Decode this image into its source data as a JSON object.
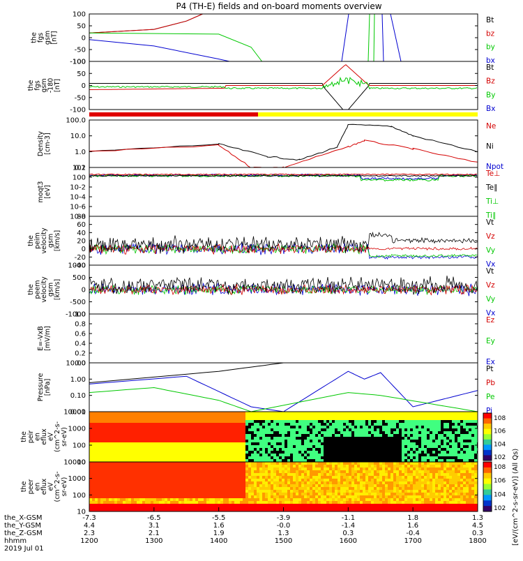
{
  "title": "P4 (TH-E) fields and on-board moments overview",
  "time_axis": {
    "rows": [
      {
        "label": "the_X-GSM",
        "values": [
          "-7.3",
          "-6.5",
          "-5.5",
          "-3.9",
          "-1.1",
          "1.8",
          "1.3"
        ]
      },
      {
        "label": "the_Y-GSM",
        "values": [
          "4.4",
          "3.1",
          "1.6",
          "-0.0",
          "-1.4",
          "1.6",
          "4.5"
        ]
      },
      {
        "label": "the_Z-GSM",
        "values": [
          "2.3",
          "2.1",
          "1.9",
          "1.3",
          "0.3",
          "-0.4",
          "0.3"
        ]
      },
      {
        "label": "hhmm",
        "values": [
          "1200",
          "1300",
          "1400",
          "1500",
          "1600",
          "1700",
          "1800"
        ]
      }
    ],
    "date": "2019 Jul 01"
  },
  "colors": {
    "black": "#000000",
    "red": "#d40000",
    "green": "#00c800",
    "blue": "#0000d0",
    "yellow": "#ffff00"
  },
  "panels": [
    {
      "id": "fgs",
      "ylabel": "the\nfgs\ngsm\n[nT]",
      "ticks": [
        "100",
        "50",
        "0",
        "-50",
        "-100"
      ],
      "legend": [
        {
          "t": "Bt",
          "c": "black"
        },
        {
          "t": "bz",
          "c": "red"
        },
        {
          "t": "by",
          "c": "green"
        },
        {
          "t": "bx",
          "c": "blue"
        }
      ]
    },
    {
      "id": "fgs2",
      "ylabel": "the\nfgs\ngsm\n-180\n[nT]",
      "ticks": [
        "100",
        "50",
        "0",
        "-50",
        "-100"
      ],
      "legend": [
        {
          "t": "Bt",
          "c": "black"
        },
        {
          "t": "Bz",
          "c": "red"
        },
        {
          "t": "By",
          "c": "green"
        },
        {
          "t": "Bx",
          "c": "blue"
        }
      ]
    },
    {
      "id": "density",
      "ylabel": "Density\n[cm-3]",
      "ticks": [
        "100.0",
        "10.0",
        "1.0",
        "0.1"
      ],
      "legend": [
        {
          "t": "Ne",
          "c": "red"
        },
        {
          "t": "Ni",
          "c": "black"
        },
        {
          "t": "Npot",
          "c": "blue"
        }
      ]
    },
    {
      "id": "temp",
      "ylabel": "moqt3\n[eV]",
      "ticks": [
        "10^2",
        "10^0",
        "10^-2",
        "10^-4",
        "10^-6",
        "10^-8"
      ],
      "legend": [
        {
          "t": "Te⊥",
          "c": "red"
        },
        {
          "t": "Te∥",
          "c": "black"
        },
        {
          "t": "Ti⊥",
          "c": "green"
        },
        {
          "t": "Ti∥",
          "c": "green"
        }
      ]
    },
    {
      "id": "veli",
      "ylabel": "the\npeim\nvelocity\ngsm\n[km/s]",
      "ticks": [
        "80",
        "60",
        "40",
        "20",
        "0",
        "-20",
        "-40"
      ],
      "legend": [
        {
          "t": "Vt",
          "c": "black"
        },
        {
          "t": "Vz",
          "c": "red"
        },
        {
          "t": "Vy",
          "c": "green"
        },
        {
          "t": "Vx",
          "c": "blue"
        }
      ]
    },
    {
      "id": "vele",
      "ylabel": "the\npeem\nvelocity\ngsm\n[km/s]",
      "ticks": [
        "1000",
        "500",
        "0",
        "-500",
        "-1000"
      ],
      "legend": [
        {
          "t": "Vt",
          "c": "black"
        },
        {
          "t": "Vz",
          "c": "red"
        },
        {
          "t": "Vy",
          "c": "green"
        },
        {
          "t": "Vx",
          "c": "blue"
        }
      ]
    },
    {
      "id": "efield",
      "ylabel": "E=-VxB\n[mV/m]",
      "ticks": [
        "1.0",
        "0.8",
        "0.6",
        "0.4",
        "0.2",
        "0.0"
      ],
      "legend": [
        {
          "t": "Ez",
          "c": "red"
        },
        {
          "t": "Ey",
          "c": "green"
        },
        {
          "t": "Ex",
          "c": "blue"
        }
      ]
    },
    {
      "id": "pressure",
      "ylabel": "Pressure\n[nPa]",
      "ticks": [
        "10.00",
        "1.00",
        "0.10",
        "0.01"
      ],
      "legend": [
        {
          "t": "Pt",
          "c": "black"
        },
        {
          "t": "Pb",
          "c": "red"
        },
        {
          "t": "Pe",
          "c": "green"
        },
        {
          "t": "Pi",
          "c": "blue"
        }
      ]
    },
    {
      "id": "peir",
      "ylabel": "the\npeir\nen\neflux\neV\n(cm^2-s-\nsr-eV)",
      "ticks": [
        "10000",
        "1000",
        "100",
        "10"
      ],
      "legend": []
    },
    {
      "id": "peer",
      "ylabel": "the\npeer\nen\neflux\neV\n(cm^2-s-\nsr-eV)",
      "ticks": [
        "10000",
        "1000",
        "100",
        "10"
      ],
      "legend": []
    }
  ],
  "colorbar": {
    "label": "[eV/(cm^2-s-sr-eV)] (All Qs)",
    "ticks_top": [
      "10^8",
      "10^6",
      "10^4",
      "10^2"
    ],
    "ticks_bottom": [
      "10^8",
      "10^6",
      "10^4",
      "10^2"
    ]
  },
  "chart_data": {
    "type": "line",
    "title": "P4 (TH-E) fields and on-board moments overview",
    "x_label": "hhmm",
    "x_ticks": [
      "1200",
      "1300",
      "1400",
      "1500",
      "1600",
      "1700",
      "1800"
    ],
    "series": [
      {
        "name": "Bt",
        "panel": "fgs",
        "x": [
          "1200",
          "1300",
          "1330",
          "1345"
        ],
        "y": [
          20,
          35,
          70,
          100
        ]
      },
      {
        "name": "bz",
        "panel": "fgs",
        "x": [
          "1200",
          "1300",
          "1330",
          "1345"
        ],
        "y": [
          20,
          35,
          70,
          100
        ]
      },
      {
        "name": "by",
        "panel": "fgs",
        "x": [
          "1200",
          "1400",
          "1430",
          "1440"
        ],
        "y": [
          20,
          15,
          -40,
          -100
        ]
      },
      {
        "name": "bx",
        "panel": "fgs",
        "x": [
          "1200",
          "1300",
          "1400",
          "1410"
        ],
        "y": [
          -8,
          -35,
          -90,
          -100
        ]
      },
      {
        "name": "Ni",
        "panel": "density",
        "x": [
          "1200",
          "1400",
          "1445",
          "1515",
          "1550",
          "1600",
          "1640",
          "1700",
          "1800"
        ],
        "y": [
          1.0,
          3.0,
          0.5,
          0.3,
          2.0,
          50,
          40,
          10,
          1.0
        ]
      },
      {
        "name": "Ne",
        "panel": "density",
        "x": [
          "1200",
          "1400",
          "1430",
          "1500",
          "1600",
          "1615",
          "1700",
          "1800"
        ],
        "y": [
          1.0,
          2.5,
          0.1,
          0.1,
          2.0,
          5.0,
          1.5,
          0.2
        ]
      },
      {
        "name": "Pt",
        "panel": "pressure",
        "x": [
          "1200",
          "1400",
          "1500"
        ],
        "y": [
          0.6,
          3.0,
          10
        ]
      },
      {
        "name": "Pi",
        "panel": "pressure",
        "x": [
          "1200",
          "1330",
          "1430",
          "1500",
          "1600",
          "1615",
          "1630",
          "1700",
          "1800"
        ],
        "y": [
          0.5,
          1.5,
          0.02,
          0.01,
          3.0,
          1.0,
          2.5,
          0.02,
          0.2
        ]
      },
      {
        "name": "Pe",
        "panel": "pressure",
        "x": [
          "1200",
          "1300",
          "1400",
          "1430",
          "1600",
          "1630",
          "1800"
        ],
        "y": [
          0.15,
          0.3,
          0.05,
          0.01,
          0.15,
          0.1,
          0.01
        ]
      }
    ]
  }
}
